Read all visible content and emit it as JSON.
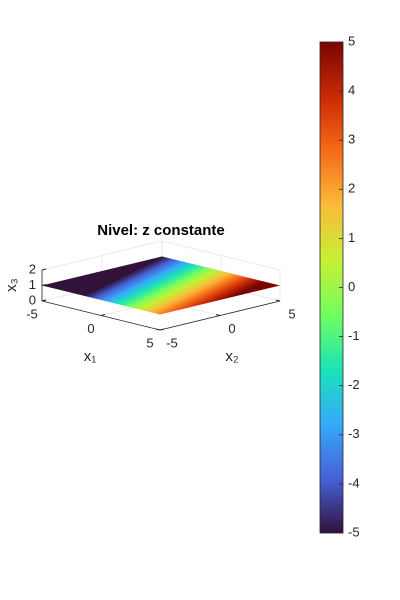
{
  "chart_data": {
    "type": "surface3d",
    "title": "Nivel: z constante",
    "xlabel": "x₁",
    "ylabel": "x₂",
    "zlabel": "x₃",
    "xlim": [
      -5,
      5
    ],
    "xticks": [
      -5,
      0,
      5
    ],
    "ylim": [
      -5,
      5
    ],
    "yticks": [
      -5,
      0,
      5
    ],
    "zlim": [
      0,
      2
    ],
    "zticks": [
      0,
      1,
      2
    ],
    "surface": {
      "z": 1
    },
    "colorbar": {
      "lim": [
        -5,
        5
      ],
      "ticks": [
        -5,
        -4,
        -3,
        -2,
        -1,
        0,
        1,
        2,
        3,
        4,
        5
      ],
      "colormap": [
        "#30123b",
        "#4662d7",
        "#36aaf9",
        "#1ae4b6",
        "#72fe5e",
        "#c7ef34",
        "#fabb3a",
        "#f66b19",
        "#ca2a04",
        "#7a0403"
      ]
    }
  }
}
